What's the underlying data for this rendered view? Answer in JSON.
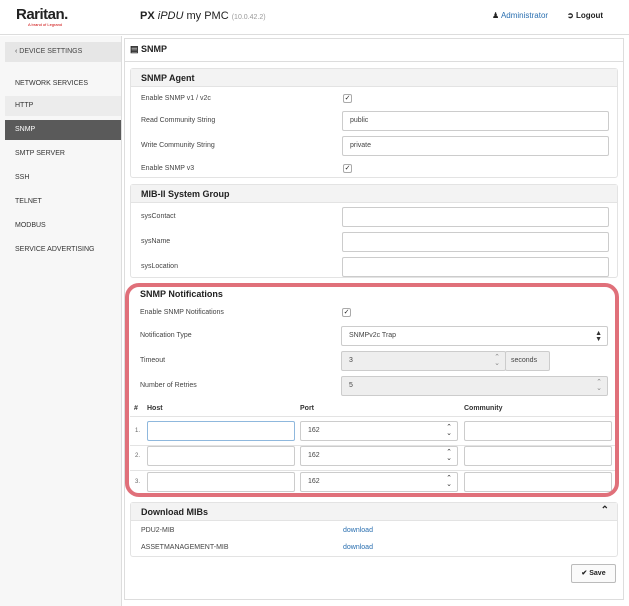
{
  "header": {
    "logo": "Raritan.",
    "logo_sub": "A brand of Legrand",
    "product": "PX",
    "model": "iPDU",
    "device": "my PMC",
    "version": "(10.0.42.2)",
    "user": "Administrator",
    "logout": "Logout"
  },
  "sidebar": {
    "back": "DEVICE SETTINGS",
    "section": "NETWORK SERVICES",
    "items": [
      {
        "label": "HTTP"
      },
      {
        "label": "SNMP",
        "active": true
      },
      {
        "label": "SMTP SERVER"
      },
      {
        "label": "SSH"
      },
      {
        "label": "TELNET"
      },
      {
        "label": "MODBUS"
      },
      {
        "label": "SERVICE ADVERTISING"
      }
    ]
  },
  "page": {
    "title": "SNMP"
  },
  "agent": {
    "title": "SNMP Agent",
    "enable_v1": "Enable SNMP v1 / v2c",
    "enable_v1_checked": true,
    "read_label": "Read Community String",
    "read_value": "public",
    "write_label": "Write Community String",
    "write_value": "private",
    "enable_v3": "Enable SNMP v3",
    "enable_v3_checked": true
  },
  "mib2": {
    "title": "MIB-II System Group",
    "contact": "sysContact",
    "name": "sysName",
    "location": "sysLocation"
  },
  "notifications": {
    "title": "SNMP Notifications",
    "enable": "Enable SNMP Notifications",
    "enable_checked": true,
    "type_label": "Notification Type",
    "type_value": "SNMPv2c Trap",
    "timeout_label": "Timeout",
    "timeout_value": "3",
    "timeout_unit": "seconds",
    "retries_label": "Number of Retries",
    "retries_value": "5",
    "col_num": "#",
    "col_host": "Host",
    "col_port": "Port",
    "col_community": "Community",
    "rows": [
      {
        "n": "1.",
        "host": "",
        "port": "162",
        "community": ""
      },
      {
        "n": "2.",
        "host": "",
        "port": "162",
        "community": ""
      },
      {
        "n": "3.",
        "host": "",
        "port": "162",
        "community": ""
      }
    ]
  },
  "mibs": {
    "title": "Download MIBs",
    "items": [
      {
        "name": "PDU2-MIB",
        "link": "download"
      },
      {
        "name": "ASSETMANAGEMENT-MIB",
        "link": "download"
      }
    ]
  },
  "save": "Save",
  "colors": {
    "highlight": "#e0707a",
    "link": "#2a6fb0",
    "active_nav": "#5a5a5a"
  }
}
